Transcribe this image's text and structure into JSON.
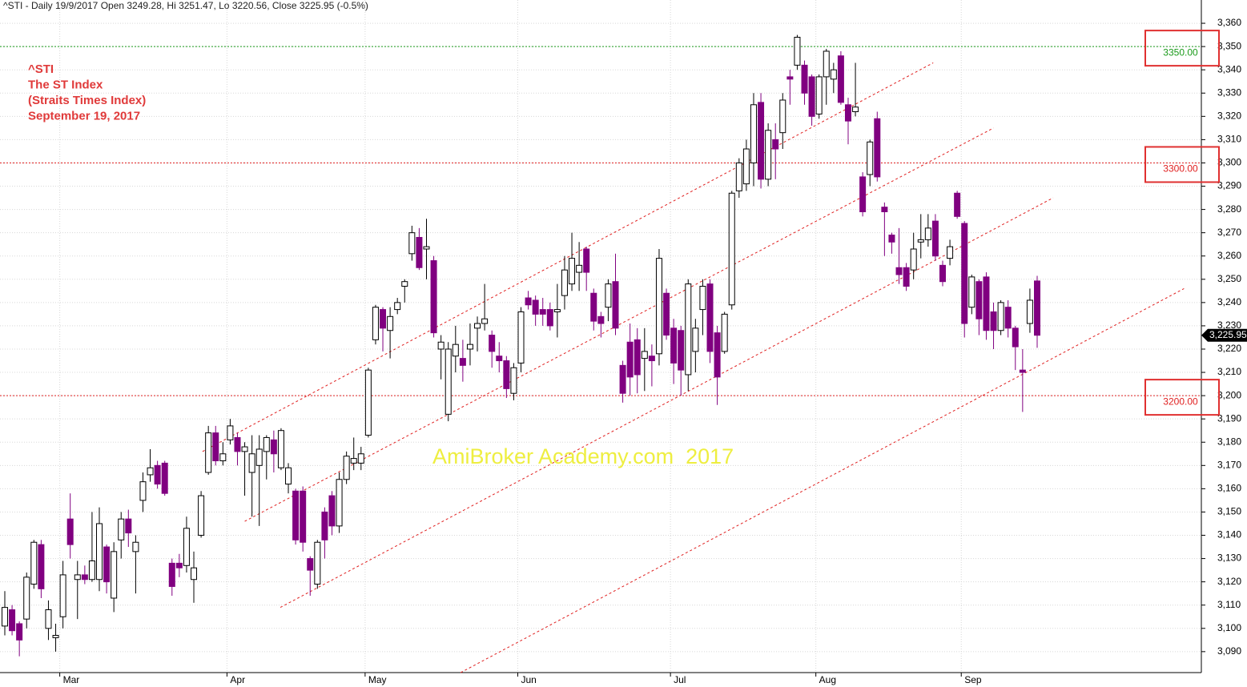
{
  "header": "^STI - Daily 19/9/2017 Open 3249.28, Hi 3251.47, Lo 3220.56, Close 3225.95 (-0.5%)",
  "chart_data": {
    "type": "candlestick",
    "annotations": [
      "^STI",
      "The ST Index",
      "(Straits Times Index)",
      "September 19, 2017"
    ],
    "watermark": "AmiBroker Academy.com  2017",
    "up_color": "#ffffff",
    "down_color": "#800080",
    "grid": true,
    "categories": [
      null,
      null,
      null,
      null,
      null,
      null,
      null,
      null,
      "Mar",
      null,
      null,
      null,
      null,
      null,
      null,
      null,
      null,
      null,
      null,
      null,
      null,
      null,
      null,
      null,
      null,
      null,
      null,
      null,
      null,
      null,
      null,
      "Apr",
      null,
      null,
      null,
      null,
      null,
      null,
      null,
      null,
      null,
      null,
      null,
      null,
      null,
      null,
      null,
      null,
      null,
      null,
      "May",
      null,
      null,
      null,
      null,
      null,
      null,
      null,
      null,
      null,
      null,
      null,
      null,
      null,
      null,
      null,
      null,
      null,
      null,
      null,
      null,
      "Jun",
      null,
      null,
      null,
      null,
      null,
      null,
      null,
      null,
      null,
      null,
      null,
      null,
      null,
      null,
      null,
      null,
      null,
      null,
      null,
      null,
      "Jul",
      null,
      null,
      null,
      null,
      null,
      null,
      null,
      null,
      null,
      null,
      null,
      null,
      null,
      null,
      null,
      null,
      null,
      null,
      null,
      "Aug",
      null,
      null,
      null,
      null,
      null,
      null,
      null,
      null,
      null,
      null,
      null,
      null,
      null,
      null,
      null,
      null,
      null,
      null,
      null,
      "Sep",
      null,
      null,
      null,
      null,
      null,
      null,
      null,
      null,
      null,
      null
    ],
    "open": [
      3101,
      3108,
      3102,
      3104,
      3119,
      3136,
      3100,
      3096,
      3105,
      3147,
      3121,
      3123,
      3121,
      3121,
      3135,
      3113,
      3138,
      3147,
      3133,
      3155,
      3166,
      3170,
      3171,
      3128,
      3128,
      3127,
      3121,
      3140,
      3167,
      3184,
      3172,
      3181,
      3182,
      3176,
      3167,
      3170,
      3176,
      3181,
      3169,
      3162,
      3159,
      3159,
      3130,
      3119,
      3150,
      3157,
      3144,
      3164,
      3171,
      3171,
      3183,
      3224,
      3237,
      3228,
      3237,
      3247,
      3261,
      3268,
      3263,
      3258,
      3220,
      3192,
      3217,
      3216,
      3220,
      3229,
      3231,
      3226,
      3217,
      3215,
      3201,
      3214,
      3242,
      3241,
      3237,
      3237,
      3236,
      3243,
      3248,
      3253,
      3263,
      3244,
      3234,
      3238,
      3249,
      3213,
      3223,
      3224,
      3216,
      3217,
      3218,
      3244,
      3229,
      3228,
      3209,
      3219,
      3237,
      3248,
      3227,
      3219,
      3239,
      3288,
      3291,
      3300,
      3326,
      3293,
      3310,
      3313,
      3337,
      3342,
      3342,
      3337,
      3321,
      3337,
      3336,
      3346,
      3325,
      3322,
      3294,
      3295,
      3319,
      3281,
      3269,
      3255,
      3255,
      3254,
      3266,
      3267,
      3275,
      3256,
      3259,
      3287,
      3274,
      3238,
      3249,
      3251,
      3236,
      3228,
      3238,
      3229,
      3211,
      3231,
      3249.28
    ],
    "high": [
      3116,
      3110,
      3103,
      3124,
      3138,
      3138,
      3112,
      3102,
      3129,
      3158,
      3129,
      3127,
      3150,
      3152,
      3136,
      3137,
      3150,
      3151,
      3140,
      3167,
      3177,
      3172,
      3172,
      3130,
      3132,
      3148,
      3133,
      3159,
      3187,
      3187,
      3180,
      3190,
      3184,
      3180,
      3183,
      3183,
      3183,
      3185,
      3186,
      3171,
      3160,
      3161,
      3131,
      3138,
      3152,
      3159,
      3167,
      3176,
      3182,
      3178,
      3212,
      3239,
      3238,
      3238,
      3242,
      3250,
      3273,
      3272,
      3276,
      3260,
      3226,
      3223,
      3230,
      3224,
      3231,
      3234,
      3248,
      3228,
      3223,
      3217,
      3214,
      3238,
      3245,
      3243,
      3242,
      3240,
      3248,
      3260,
      3270,
      3266,
      3264,
      3246,
      3236,
      3250,
      3261,
      3215,
      3231,
      3229,
      3229,
      3222,
      3263,
      3246,
      3233,
      3230,
      3250,
      3233,
      3250,
      3250,
      3230,
      3236,
      3288,
      3302,
      3310,
      3330,
      3330,
      3317,
      3317,
      3330,
      3340,
      3355,
      3344,
      3338,
      3338,
      3349,
      3343,
      3348,
      3328,
      3343,
      3296,
      3310,
      3322,
      3283,
      3270,
      3272,
      3257,
      3270,
      3278,
      3278,
      3278,
      3258,
      3267,
      3288,
      3275,
      3252,
      3250,
      3253,
      3240,
      3241,
      3241,
      3230,
      3220,
      3246,
      3251.47
    ],
    "low": [
      3097,
      3097,
      3088,
      3100,
      3117,
      3113,
      3095,
      3090,
      3100,
      3130,
      3104,
      3119,
      3120,
      3116,
      3115,
      3107,
      3130,
      3135,
      3115,
      3150,
      3163,
      3160,
      3157,
      3114,
      3122,
      3124,
      3111,
      3139,
      3166,
      3170,
      3170,
      3179,
      3170,
      3157,
      3148,
      3144,
      3164,
      3167,
      3168,
      3158,
      3136,
      3133,
      3114,
      3117,
      3130,
      3140,
      3141,
      3162,
      3168,
      3168,
      3182,
      3222,
      3219,
      3216,
      3235,
      3240,
      3258,
      3254,
      3250,
      3225,
      3207,
      3189,
      3210,
      3206,
      3213,
      3219,
      3228,
      3212,
      3210,
      3199,
      3198,
      3210,
      3237,
      3230,
      3230,
      3228,
      3225,
      3237,
      3245,
      3245,
      3245,
      3228,
      3225,
      3232,
      3226,
      3197,
      3200,
      3201,
      3202,
      3204,
      3213,
      3224,
      3205,
      3200,
      3202,
      3210,
      3226,
      3214,
      3196,
      3218,
      3237,
      3285,
      3288,
      3290,
      3289,
      3290,
      3293,
      3306,
      3325,
      3340,
      3325,
      3316,
      3319,
      3325,
      3330,
      3325,
      3308,
      3320,
      3277,
      3290,
      3292,
      3260,
      3261,
      3248,
      3245,
      3250,
      3259,
      3264,
      3258,
      3247,
      3256,
      3276,
      3225,
      3235,
      3226,
      3224,
      3220,
      3226,
      3225,
      3211,
      3193,
      3227,
      3220.56
    ],
    "close": [
      3109,
      3099,
      3095,
      3122,
      3137,
      3117,
      3108,
      3097,
      3123,
      3136,
      3123,
      3121,
      3129,
      3145,
      3120,
      3133,
      3147,
      3141,
      3137,
      3163,
      3169,
      3162,
      3158,
      3118,
      3126,
      3143,
      3126,
      3157,
      3184,
      3172,
      3175,
      3187,
      3176,
      3178,
      3175,
      3177,
      3182,
      3175,
      3185,
      3169,
      3138,
      3137,
      3125,
      3137,
      3138,
      3144,
      3164,
      3174,
      3173,
      3175,
      3211,
      3238,
      3229,
      3234,
      3240,
      3249,
      3270,
      3255,
      3264,
      3227,
      3223,
      3220,
      3222,
      3213,
      3222,
      3231,
      3233,
      3219,
      3215,
      3203,
      3212,
      3236,
      3239,
      3235,
      3235,
      3230,
      3237,
      3254,
      3259,
      3256,
      3253,
      3232,
      3231,
      3248,
      3229,
      3201,
      3208,
      3209,
      3219,
      3215,
      3259,
      3226,
      3214,
      3211,
      3248,
      3229,
      3247,
      3219,
      3208,
      3235,
      3287,
      3300,
      3306,
      3325,
      3293,
      3314,
      3306,
      3327,
      3336,
      3354,
      3330,
      3320,
      3337,
      3348,
      3340,
      3326,
      3318,
      3324,
      3279,
      3309,
      3294,
      3279,
      3266,
      3252,
      3247,
      3263,
      3267,
      3272,
      3260,
      3249,
      3264,
      3277,
      3231,
      3251,
      3233,
      3228,
      3228,
      3240,
      3229,
      3221,
      3210,
      3241,
      3225.95
    ],
    "ylim": [
      3081,
      3370
    ],
    "yticks": [
      {
        "value": 3090,
        "label": "3,090"
      },
      {
        "value": 3100,
        "label": "3,100"
      },
      {
        "value": 3110,
        "label": "3,110"
      },
      {
        "value": 3120,
        "label": "3,120"
      },
      {
        "value": 3130,
        "label": "3,130"
      },
      {
        "value": 3140,
        "label": "3,140"
      },
      {
        "value": 3150,
        "label": "3,150"
      },
      {
        "value": 3160,
        "label": "3,160"
      },
      {
        "value": 3170,
        "label": "3,170"
      },
      {
        "value": 3180,
        "label": "3,180"
      },
      {
        "value": 3190,
        "label": "3,190"
      },
      {
        "value": 3200,
        "label": "3,200"
      },
      {
        "value": 3210,
        "label": "3,210"
      },
      {
        "value": 3220,
        "label": "3,220"
      },
      {
        "value": 3230,
        "label": "3,230"
      },
      {
        "value": 3240,
        "label": "3,240"
      },
      {
        "value": 3250,
        "label": "3,250"
      },
      {
        "value": 3260,
        "label": "3,260"
      },
      {
        "value": 3270,
        "label": "3,270"
      },
      {
        "value": 3280,
        "label": "3,280"
      },
      {
        "value": 3290,
        "label": "3,290"
      },
      {
        "value": 3300,
        "label": "3,300"
      },
      {
        "value": 3310,
        "label": "3,310"
      },
      {
        "value": 3320,
        "label": "3,320"
      },
      {
        "value": 3330,
        "label": "3,330"
      },
      {
        "value": 3340,
        "label": "3,340"
      },
      {
        "value": 3350,
        "label": "3,350"
      },
      {
        "value": 3360,
        "label": "3,360"
      }
    ],
    "levels": [
      {
        "value": 3350,
        "label": "3350.00",
        "color": "#1a9a1a"
      },
      {
        "value": 3300,
        "label": "3300.00",
        "color": "#e02020"
      },
      {
        "value": 3200,
        "label": "3200.00",
        "color": "#e02020"
      }
    ],
    "last": {
      "value": 3225.95,
      "label": "3,225.95"
    },
    "channels": [
      {
        "x": [
          27.2,
          127.7
        ],
        "y": [
          3176,
          3343
        ]
      },
      {
        "x": [
          33,
          136
        ],
        "y": [
          3146,
          3315
        ]
      },
      {
        "x": [
          37.9,
          144.2
        ],
        "y": [
          3109,
          3285
        ]
      },
      {
        "x": [
          62.7,
          162.2
        ],
        "y": [
          3081,
          3246
        ]
      }
    ],
    "channel_color": "#e02020"
  }
}
